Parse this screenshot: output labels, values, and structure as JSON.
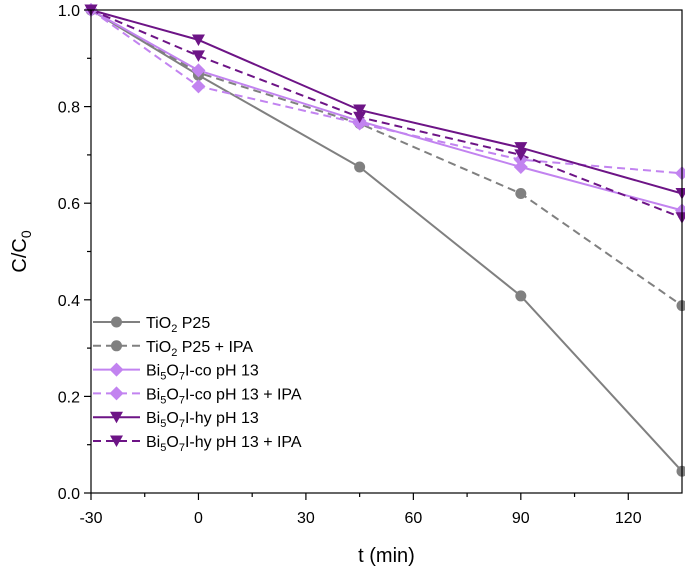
{
  "chart_data": {
    "type": "line",
    "title": "",
    "xlabel": "t (min)",
    "ylabel": {
      "main": "C/C",
      "sub": "0"
    },
    "xlim": [
      -30,
      135
    ],
    "ylim": [
      0,
      1.0
    ],
    "xticks": [
      -30,
      0,
      30,
      60,
      90,
      120
    ],
    "xtick_labels": [
      "-30",
      "0",
      "30",
      "60",
      "90",
      "120"
    ],
    "yticks": [
      0,
      0.2,
      0.4,
      0.6,
      0.8,
      1.0
    ],
    "ytick_labels": [
      "0.0",
      "0.2",
      "0.4",
      "0.6",
      "0.8",
      "1.0"
    ],
    "legend_position": "bottom-left",
    "grid": false,
    "series": [
      {
        "key": "tio2-p25",
        "name": "TiO2 P25",
        "label_parts": [
          {
            "t": "TiO"
          },
          {
            "t": "2",
            "sub": true
          },
          {
            "t": " P25"
          }
        ],
        "color": "#808080",
        "dash": "solid",
        "marker": "circle",
        "x": [
          -30,
          0,
          45,
          90,
          135
        ],
        "y": [
          1.0,
          0.865,
          0.675,
          0.408,
          0.045
        ]
      },
      {
        "key": "tio2-p25-ipa",
        "name": "TiO2 P25 + IPA",
        "label_parts": [
          {
            "t": "TiO"
          },
          {
            "t": "2",
            "sub": true
          },
          {
            "t": " P25 + IPA"
          }
        ],
        "color": "#808080",
        "dash": "dashed",
        "marker": "circle",
        "x": [
          -30,
          0,
          45,
          90,
          135
        ],
        "y": [
          1.0,
          0.87,
          0.765,
          0.62,
          0.388
        ]
      },
      {
        "key": "bi5o7i-co",
        "name": "Bi5O7I-co pH 13",
        "label_parts": [
          {
            "t": "Bi"
          },
          {
            "t": "5",
            "sub": true
          },
          {
            "t": "O"
          },
          {
            "t": "7",
            "sub": true
          },
          {
            "t": "I-co pH 13"
          }
        ],
        "color": "#c283f0",
        "dash": "solid",
        "marker": "diamond",
        "x": [
          -30,
          0,
          45,
          90,
          135
        ],
        "y": [
          1.0,
          0.875,
          0.77,
          0.675,
          0.585
        ]
      },
      {
        "key": "bi5o7i-co-ipa",
        "name": "Bi5O7I-co pH 13 + IPA",
        "label_parts": [
          {
            "t": "Bi"
          },
          {
            "t": "5",
            "sub": true
          },
          {
            "t": "O"
          },
          {
            "t": "7",
            "sub": true
          },
          {
            "t": "I-co pH 13 + IPA"
          }
        ],
        "color": "#c283f0",
        "dash": "dashed",
        "marker": "diamond",
        "x": [
          -30,
          0,
          45,
          90,
          135
        ],
        "y": [
          1.0,
          0.842,
          0.765,
          0.69,
          0.662
        ]
      },
      {
        "key": "bi5o7i-hy",
        "name": "Bi5O7I-hy pH 13",
        "label_parts": [
          {
            "t": "Bi"
          },
          {
            "t": "5",
            "sub": true
          },
          {
            "t": "O"
          },
          {
            "t": "7",
            "sub": true
          },
          {
            "t": "I-hy pH 13"
          }
        ],
        "color": "#6d1486",
        "dash": "solid",
        "marker": "triangle-down",
        "x": [
          -30,
          0,
          45,
          90,
          135
        ],
        "y": [
          1.0,
          0.938,
          0.793,
          0.715,
          0.62
        ]
      },
      {
        "key": "bi5o7i-hy-ipa",
        "name": "Bi5O7I-hy pH 13 + IPA",
        "label_parts": [
          {
            "t": "Bi"
          },
          {
            "t": "5",
            "sub": true
          },
          {
            "t": "O"
          },
          {
            "t": "7",
            "sub": true
          },
          {
            "t": "I-hy pH 13 + IPA"
          }
        ],
        "color": "#6d1486",
        "dash": "dashed",
        "marker": "triangle-down",
        "x": [
          -30,
          0,
          45,
          90,
          135
        ],
        "y": [
          1.0,
          0.905,
          0.778,
          0.7,
          0.57
        ]
      }
    ]
  }
}
